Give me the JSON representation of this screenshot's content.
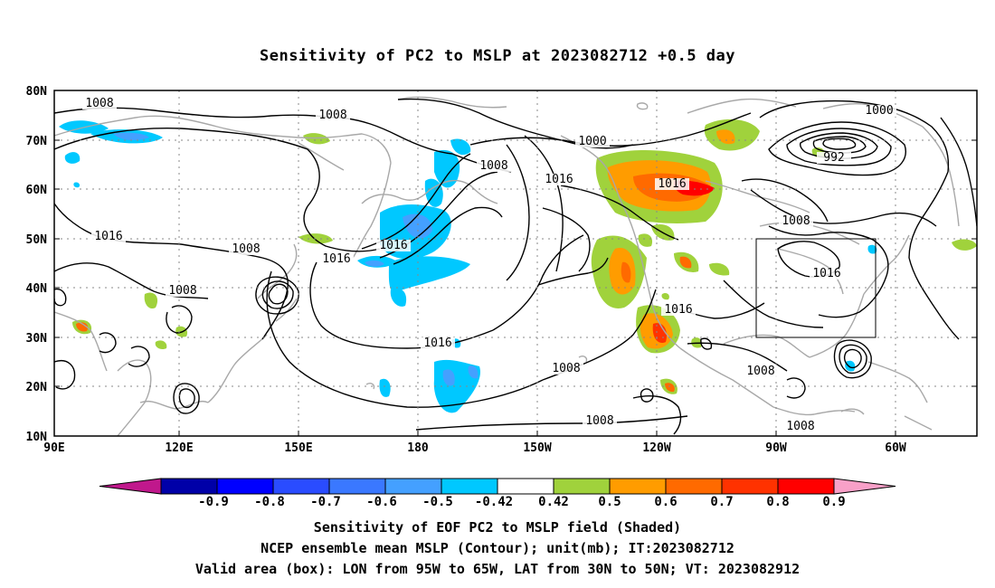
{
  "title": "Sensitivity of PC2 to MSLP at 2023082712 +0.5 day",
  "axes": {
    "lat_ticks": [
      "80N",
      "70N",
      "60N",
      "50N",
      "40N",
      "30N",
      "20N",
      "10N"
    ],
    "lon_ticks": [
      "90E",
      "120E",
      "150E",
      "180",
      "150W",
      "120W",
      "90W",
      "60W"
    ]
  },
  "contour_labels": [
    "1008",
    "1008",
    "1000",
    "1000",
    "992",
    "1008",
    "1016",
    "1016",
    "1008",
    "1016",
    "1008",
    "1016",
    "1016",
    "1016",
    "1008",
    "1016",
    "1016",
    "1008",
    "1008",
    "1008",
    "1008"
  ],
  "colorbar": {
    "labels": [
      "-0.9",
      "-0.8",
      "-0.7",
      "-0.6",
      "-0.5",
      "-0.42",
      "0.42",
      "0.5",
      "0.6",
      "0.7",
      "0.8",
      "0.9"
    ],
    "colors": [
      "#c0188c",
      "#0000a8",
      "#0000ff",
      "#2a4cff",
      "#3a78ff",
      "#44a0ff",
      "#00c8ff",
      "#ffffff",
      "#a0d23c",
      "#ff9c00",
      "#ff6a00",
      "#ff3200",
      "#ff0000",
      "#f8a0c8"
    ]
  },
  "footer": {
    "line1": "Sensitivity of EOF PC2 to MSLP field (Shaded)",
    "line2": "NCEP ensemble mean MSLP (Contour); unit(mb); IT:2023082712",
    "line3": "Valid area (box): LON from 95W to 65W, LAT from 30N to 50N; VT: 2023082912"
  }
}
